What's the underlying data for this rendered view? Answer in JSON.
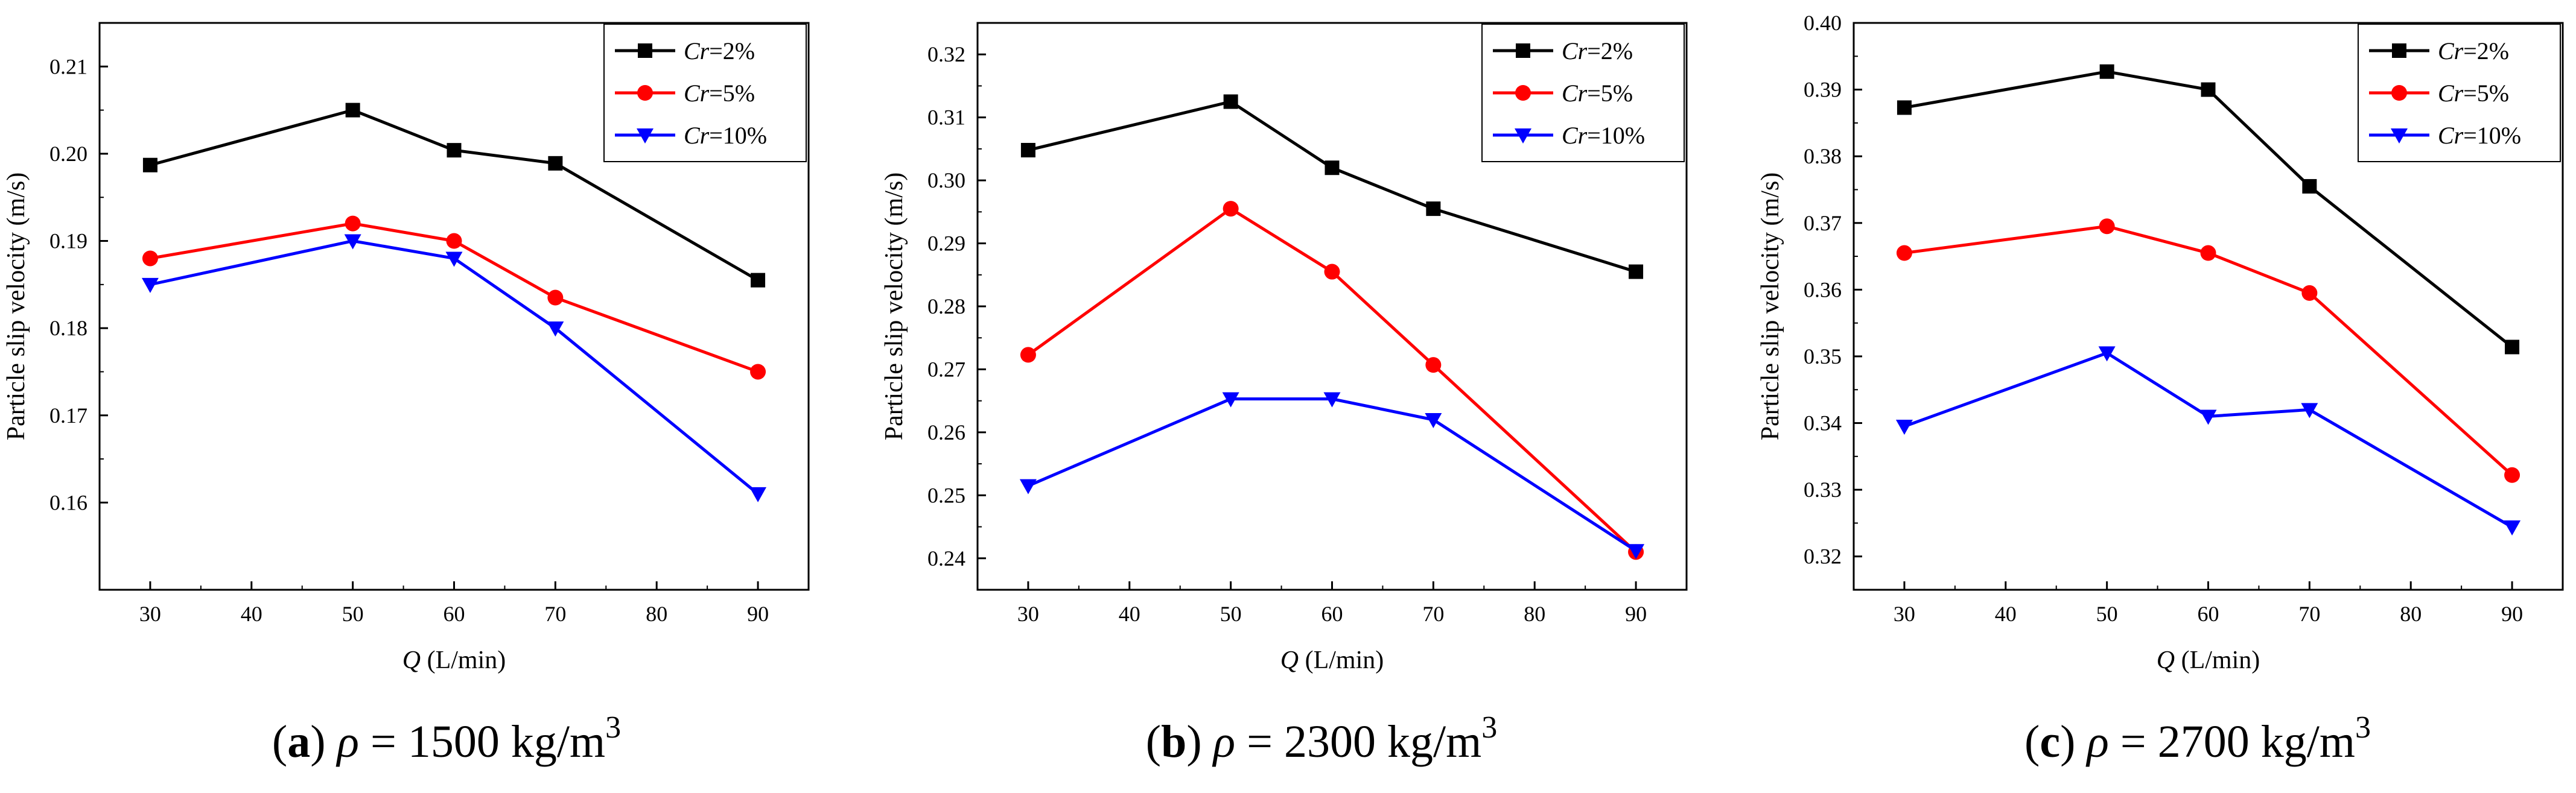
{
  "chart_data": [
    {
      "type": "line",
      "panel_label": "a",
      "caption_symbol": "ρ",
      "caption_equals": "=",
      "caption_value": "1500",
      "caption_unit": "kg/m",
      "caption_unit_exponent": "3",
      "xlabel_var": "Q",
      "xlabel_unit": "(L/min)",
      "ylabel": "Particle slip velocity (m/s)",
      "xlim": [
        25,
        95
      ],
      "ylim": [
        0.15,
        0.215
      ],
      "xticks": [
        30,
        40,
        50,
        60,
        70,
        80,
        90
      ],
      "yticks": [
        0.16,
        0.17,
        0.18,
        0.19,
        0.2,
        0.21
      ],
      "ytick_labels": [
        "0.16",
        "0.17",
        "0.18",
        "0.19",
        "0.20",
        "0.21"
      ],
      "x": [
        30,
        50,
        60,
        70,
        90
      ],
      "legend_position": "top-right",
      "series": [
        {
          "name_var": "Cr",
          "name_value": "=2%",
          "color": "#000000",
          "marker": "square",
          "values": [
            0.1987,
            0.205,
            0.2004,
            0.1989,
            0.1855
          ]
        },
        {
          "name_var": "Cr",
          "name_value": "=5%",
          "color": "#ff0000",
          "marker": "circle",
          "values": [
            0.188,
            0.192,
            0.19,
            0.1835,
            0.175
          ]
        },
        {
          "name_var": "Cr",
          "name_value": "=10%",
          "color": "#0000ff",
          "marker": "triangle-down",
          "values": [
            0.185,
            0.19,
            0.188,
            0.18,
            0.161
          ]
        }
      ]
    },
    {
      "type": "line",
      "panel_label": "b",
      "caption_symbol": "ρ",
      "caption_equals": "=",
      "caption_value": "2300",
      "caption_unit": "kg/m",
      "caption_unit_exponent": "3",
      "xlabel_var": "Q",
      "xlabel_unit": "(L/min)",
      "ylabel": "Particle slip velocity (m/s)",
      "xlim": [
        25,
        95
      ],
      "ylim": [
        0.235,
        0.325
      ],
      "xticks": [
        30,
        40,
        50,
        60,
        70,
        80,
        90
      ],
      "yticks": [
        0.24,
        0.25,
        0.26,
        0.27,
        0.28,
        0.29,
        0.3,
        0.31,
        0.32
      ],
      "ytick_labels": [
        "0.24",
        "0.25",
        "0.26",
        "0.27",
        "0.28",
        "0.29",
        "0.30",
        "0.31",
        "0.32"
      ],
      "x": [
        30,
        50,
        60,
        70,
        90
      ],
      "legend_position": "top-right",
      "series": [
        {
          "name_var": "Cr",
          "name_value": "=2%",
          "color": "#000000",
          "marker": "square",
          "values": [
            0.3048,
            0.3125,
            0.302,
            0.2955,
            0.2855
          ]
        },
        {
          "name_var": "Cr",
          "name_value": "=5%",
          "color": "#ff0000",
          "marker": "circle",
          "values": [
            0.2723,
            0.2955,
            0.2855,
            0.2707,
            0.241
          ]
        },
        {
          "name_var": "Cr",
          "name_value": "=10%",
          "color": "#0000ff",
          "marker": "triangle-down",
          "values": [
            0.2515,
            0.2653,
            0.2653,
            0.262,
            0.2412
          ]
        }
      ]
    },
    {
      "type": "line",
      "panel_label": "c",
      "caption_symbol": "ρ",
      "caption_equals": "=",
      "caption_value": "2700",
      "caption_unit": "kg/m",
      "caption_unit_exponent": "3",
      "xlabel_var": "Q",
      "xlabel_unit": "(L/min)",
      "ylabel": "Particle slip velocity (m/s)",
      "xlim": [
        25,
        95
      ],
      "ylim": [
        0.315,
        0.4
      ],
      "xticks": [
        30,
        40,
        50,
        60,
        70,
        80,
        90
      ],
      "yticks": [
        0.32,
        0.33,
        0.34,
        0.35,
        0.36,
        0.37,
        0.38,
        0.39,
        0.4
      ],
      "ytick_labels": [
        "0.32",
        "0.33",
        "0.34",
        "0.35",
        "0.36",
        "0.37",
        "0.38",
        "0.39",
        "0.40"
      ],
      "x": [
        30,
        50,
        60,
        70,
        90
      ],
      "legend_position": "top-right",
      "series": [
        {
          "name_var": "Cr",
          "name_value": "=2%",
          "color": "#000000",
          "marker": "square",
          "values": [
            0.3873,
            0.3927,
            0.39,
            0.3755,
            0.3514
          ]
        },
        {
          "name_var": "Cr",
          "name_value": "=5%",
          "color": "#ff0000",
          "marker": "circle",
          "values": [
            0.3655,
            0.3695,
            0.3655,
            0.3595,
            0.3322
          ]
        },
        {
          "name_var": "Cr",
          "name_value": "=10%",
          "color": "#0000ff",
          "marker": "triangle-down",
          "values": [
            0.3395,
            0.3505,
            0.341,
            0.342,
            0.3244
          ]
        }
      ]
    }
  ]
}
